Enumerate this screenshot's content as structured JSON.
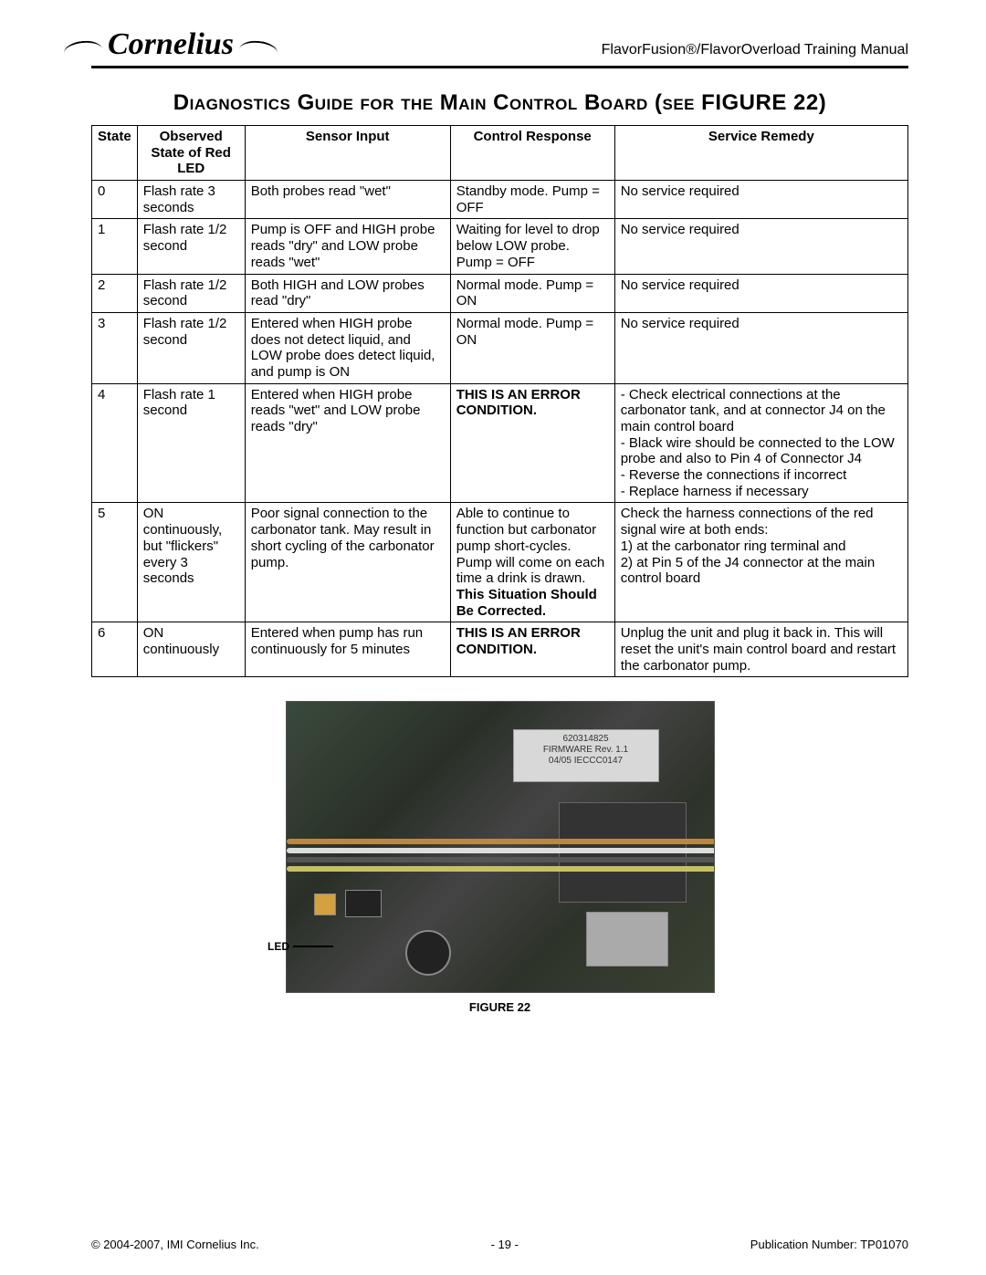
{
  "header": {
    "brand": "Cornelius",
    "doc_title": "FlavorFusion®/FlavorOverload Training Manual"
  },
  "title": "Diagnostics Guide for the Main Control Board (see FIGURE 22)",
  "table": {
    "headers": {
      "state": "State",
      "observed": "Observed State of Red LED",
      "sensor": "Sensor Input",
      "control": "Control Response",
      "remedy": "Service Remedy"
    },
    "rows": [
      {
        "state": "0",
        "observed": "Flash rate 3 seconds",
        "sensor": "Both probes read \"wet\"",
        "control": "Standby mode. Pump = OFF",
        "control_bold": "",
        "remedy": "No service required"
      },
      {
        "state": "1",
        "observed": "Flash rate 1/2 second",
        "sensor": "Pump is OFF and HIGH probe reads \"dry\" and LOW probe reads \"wet\"",
        "control": "Waiting for level to drop below LOW probe. Pump = OFF",
        "control_bold": "",
        "remedy": "No service required"
      },
      {
        "state": "2",
        "observed": "Flash rate 1/2 second",
        "sensor": "Both HIGH and LOW probes read \"dry\"",
        "control": "Normal mode. Pump = ON",
        "control_bold": "",
        "remedy": "No service required"
      },
      {
        "state": "3",
        "observed": "Flash rate 1/2 second",
        "sensor": "Entered when HIGH probe does not detect liquid, and LOW probe does detect liquid, and pump is ON",
        "control": "Normal mode. Pump = ON",
        "control_bold": "",
        "remedy": "No service required"
      },
      {
        "state": "4",
        "observed": "Flash rate 1 second",
        "sensor": "Entered when HIGH probe reads \"wet\" and LOW probe reads \"dry\"",
        "control": "",
        "control_bold": "THIS IS AN ERROR CONDITION.",
        "remedy": "- Check electrical connections at the carbonator tank, and at connector J4 on the main control board\n- Black wire should be connected to the LOW probe and also to Pin 4 of Connector J4\n- Reverse the connections if incorrect\n- Replace harness if necessary"
      },
      {
        "state": "5",
        "observed": "ON continuously, but \"flickers\" every 3 seconds",
        "sensor": "Poor signal connection to the carbonator tank. May result in short cycling of the carbonator pump.",
        "control": "Able to continue to function but carbonator pump short-cycles. Pump will come on each time a drink is drawn. ",
        "control_bold": "This Situation Should Be Corrected.",
        "remedy": "Check the harness connections of the red signal wire at both ends:\n1) at the carbonator ring terminal and\n2) at Pin 5 of the J4 connector at the main control board"
      },
      {
        "state": "6",
        "observed": "ON continuously",
        "sensor": "Entered when pump has run continuously for 5 minutes",
        "control": "",
        "control_bold": "THIS IS AN ERROR CONDITION.",
        "remedy": "Unplug the unit and plug it back in. This will reset the unit's main control board and restart the carbonator pump."
      }
    ]
  },
  "figure": {
    "led_label": "LED",
    "sticker_line1": "620314825",
    "sticker_line2": "FIRMWARE Rev. 1.1",
    "sticker_line3": "04/05 IECCC0147",
    "caption": "FIGURE 22"
  },
  "footer": {
    "left": "© 2004-2007, IMI Cornelius Inc.",
    "center": "- 19 -",
    "right": "Publication Number: TP01070"
  },
  "colors": {
    "text": "#000000",
    "border": "#000000",
    "bg": "#ffffff"
  }
}
